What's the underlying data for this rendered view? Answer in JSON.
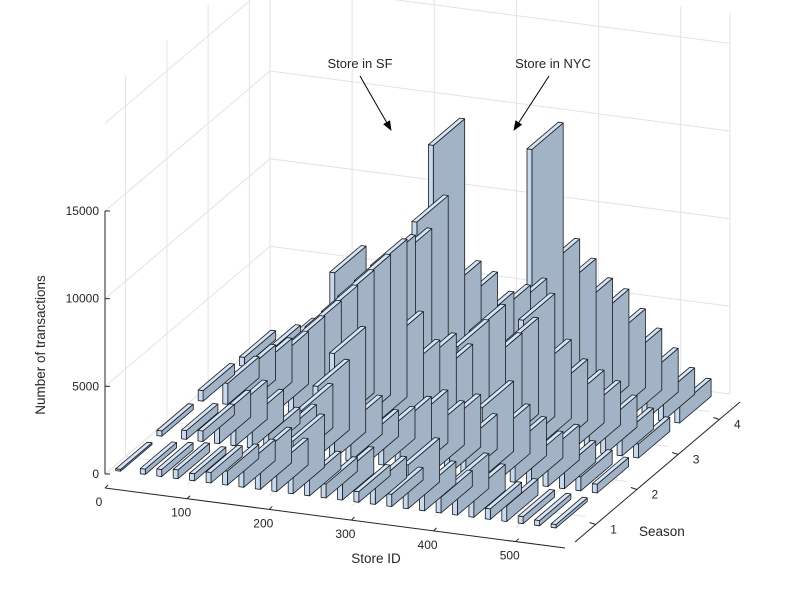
{
  "chart_data": {
    "type": "bar3",
    "title": "",
    "xlabel": "Store ID",
    "ylabel": "Season",
    "zlabel": "Number of transactions",
    "x_ticks": [
      "0",
      "100",
      "200",
      "300",
      "400",
      "500"
    ],
    "y_ticks": [
      "1",
      "2",
      "3",
      "4"
    ],
    "z_ticks": [
      "0",
      "5000",
      "10000",
      "15000"
    ],
    "xlim": [
      0,
      560
    ],
    "ylim": [
      0.5,
      4.5
    ],
    "zlim": [
      0,
      15000
    ],
    "bar_color": "#c5daf0",
    "grid": true,
    "store_ids": [
      10,
      40,
      60,
      80,
      100,
      120,
      140,
      160,
      180,
      200,
      220,
      240,
      260,
      280,
      300,
      320,
      340,
      360,
      380,
      400,
      420,
      440,
      460,
      480,
      500,
      520,
      540
    ],
    "series": [
      {
        "name": "1",
        "values": [
          100,
          300,
          400,
          500,
          400,
          600,
          800,
          1200,
          2000,
          1500,
          3000,
          1000,
          800,
          1500,
          600,
          1200,
          700,
          2500,
          1300,
          900,
          2000,
          1500,
          600,
          900,
          400,
          300,
          200
        ]
      },
      {
        "name": "2",
        "values": [
          300,
          500,
          600,
          1500,
          2200,
          1800,
          900,
          1200,
          2500,
          4000,
          6000,
          2200,
          1500,
          1800,
          2500,
          3000,
          2500,
          3000,
          2000,
          4000,
          2800,
          2200,
          1500,
          2000,
          1200,
          800,
          500
        ]
      },
      {
        "name": "3",
        "values": [
          600,
          1200,
          2000,
          2500,
          3000,
          4000,
          5000,
          6000,
          7000,
          8000,
          9000,
          5000,
          3500,
          4000,
          3500,
          5000,
          6000,
          4500,
          5500,
          7000,
          4500,
          3500,
          3000,
          2500,
          1800,
          1200,
          800
        ]
      },
      {
        "name": "4",
        "values": [
          500,
          1000,
          1500,
          2000,
          3000,
          6000,
          5000,
          6000,
          7000,
          7500,
          9500,
          14000,
          6000,
          5500,
          4500,
          5000,
          5500,
          14500,
          8000,
          7000,
          6000,
          5500,
          4500,
          3500,
          2500,
          1500,
          1000
        ]
      }
    ],
    "annotations": [
      {
        "text": "Store in SF",
        "store_id": 240,
        "season": 4,
        "value": 14000
      },
      {
        "text": "Store in NYC",
        "store_id": 360,
        "season": 4,
        "value": 14500
      }
    ]
  }
}
